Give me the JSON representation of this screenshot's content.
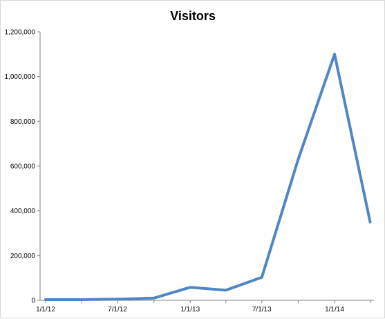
{
  "chart_data": {
    "type": "line",
    "title": "Visitors",
    "xlabel": "",
    "ylabel": "",
    "ylim": [
      0,
      1200000
    ],
    "y_ticks": [
      "0",
      "200,000",
      "400,000",
      "600,000",
      "800,000",
      "1,000,000",
      "1,200,000"
    ],
    "x_tick_labels": [
      "1/1/12",
      "7/1/12",
      "1/1/13",
      "7/1/13",
      "1/1/14"
    ],
    "grid": false,
    "legend": "none",
    "line_color": "#4f86c6",
    "series": [
      {
        "x": [
          "1/1/12",
          "4/1/12",
          "7/1/12",
          "10/1/12",
          "1/1/13",
          "4/1/13",
          "7/1/13",
          "10/1/13",
          "1/1/14",
          "4/1/14"
        ],
        "values": [
          3000,
          3000,
          5000,
          10000,
          58000,
          45000,
          103000,
          630000,
          1100000,
          350000
        ]
      }
    ]
  }
}
